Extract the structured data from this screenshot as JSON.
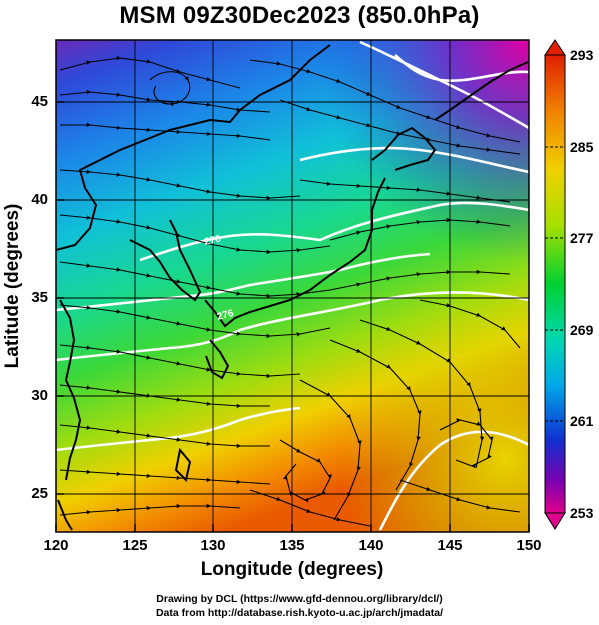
{
  "title": "MSM 09Z30Dec2023 (850.0hPa)",
  "xaxis": {
    "label": "Longitude (degrees)",
    "range": [
      120,
      150
    ],
    "ticks": [
      "120",
      "125",
      "130",
      "135",
      "140",
      "145",
      "150"
    ]
  },
  "yaxis": {
    "label": "Latitude  (degrees)",
    "range": [
      22.4,
      47.6
    ],
    "ticks": [
      "25",
      "30",
      "35",
      "40",
      "45"
    ]
  },
  "colorbar": {
    "min": 253,
    "max": 293,
    "labels": [
      "293",
      "285",
      "277",
      "269",
      "261",
      "253"
    ],
    "colors": [
      "#e0008a",
      "#7a00b0",
      "#1030d0",
      "#00a8e8",
      "#00d8b0",
      "#00d030",
      "#a8e000",
      "#f0d000",
      "#f08000",
      "#e02000"
    ]
  },
  "contour_labels": [
    "276",
    "270"
  ],
  "credits": {
    "line1": "Drawing by DCL (https://www.gfd-dennou.org/library/dcl/)",
    "line2": "Data from http://database.rish.kyoto-u.ac.jp/arch/jmadata/"
  },
  "chart_data": {
    "type": "heatmap",
    "title": "MSM 09Z30Dec2023 (850.0hPa)",
    "xlabel": "Longitude (degrees)",
    "ylabel": "Latitude  (degrees)",
    "xlim": [
      120,
      150
    ],
    "ylim": [
      22.4,
      47.6
    ],
    "colorbar_range": [
      253,
      293
    ],
    "overlays": [
      "streamlines",
      "temperature contours",
      "coastlines",
      "grid"
    ]
  }
}
